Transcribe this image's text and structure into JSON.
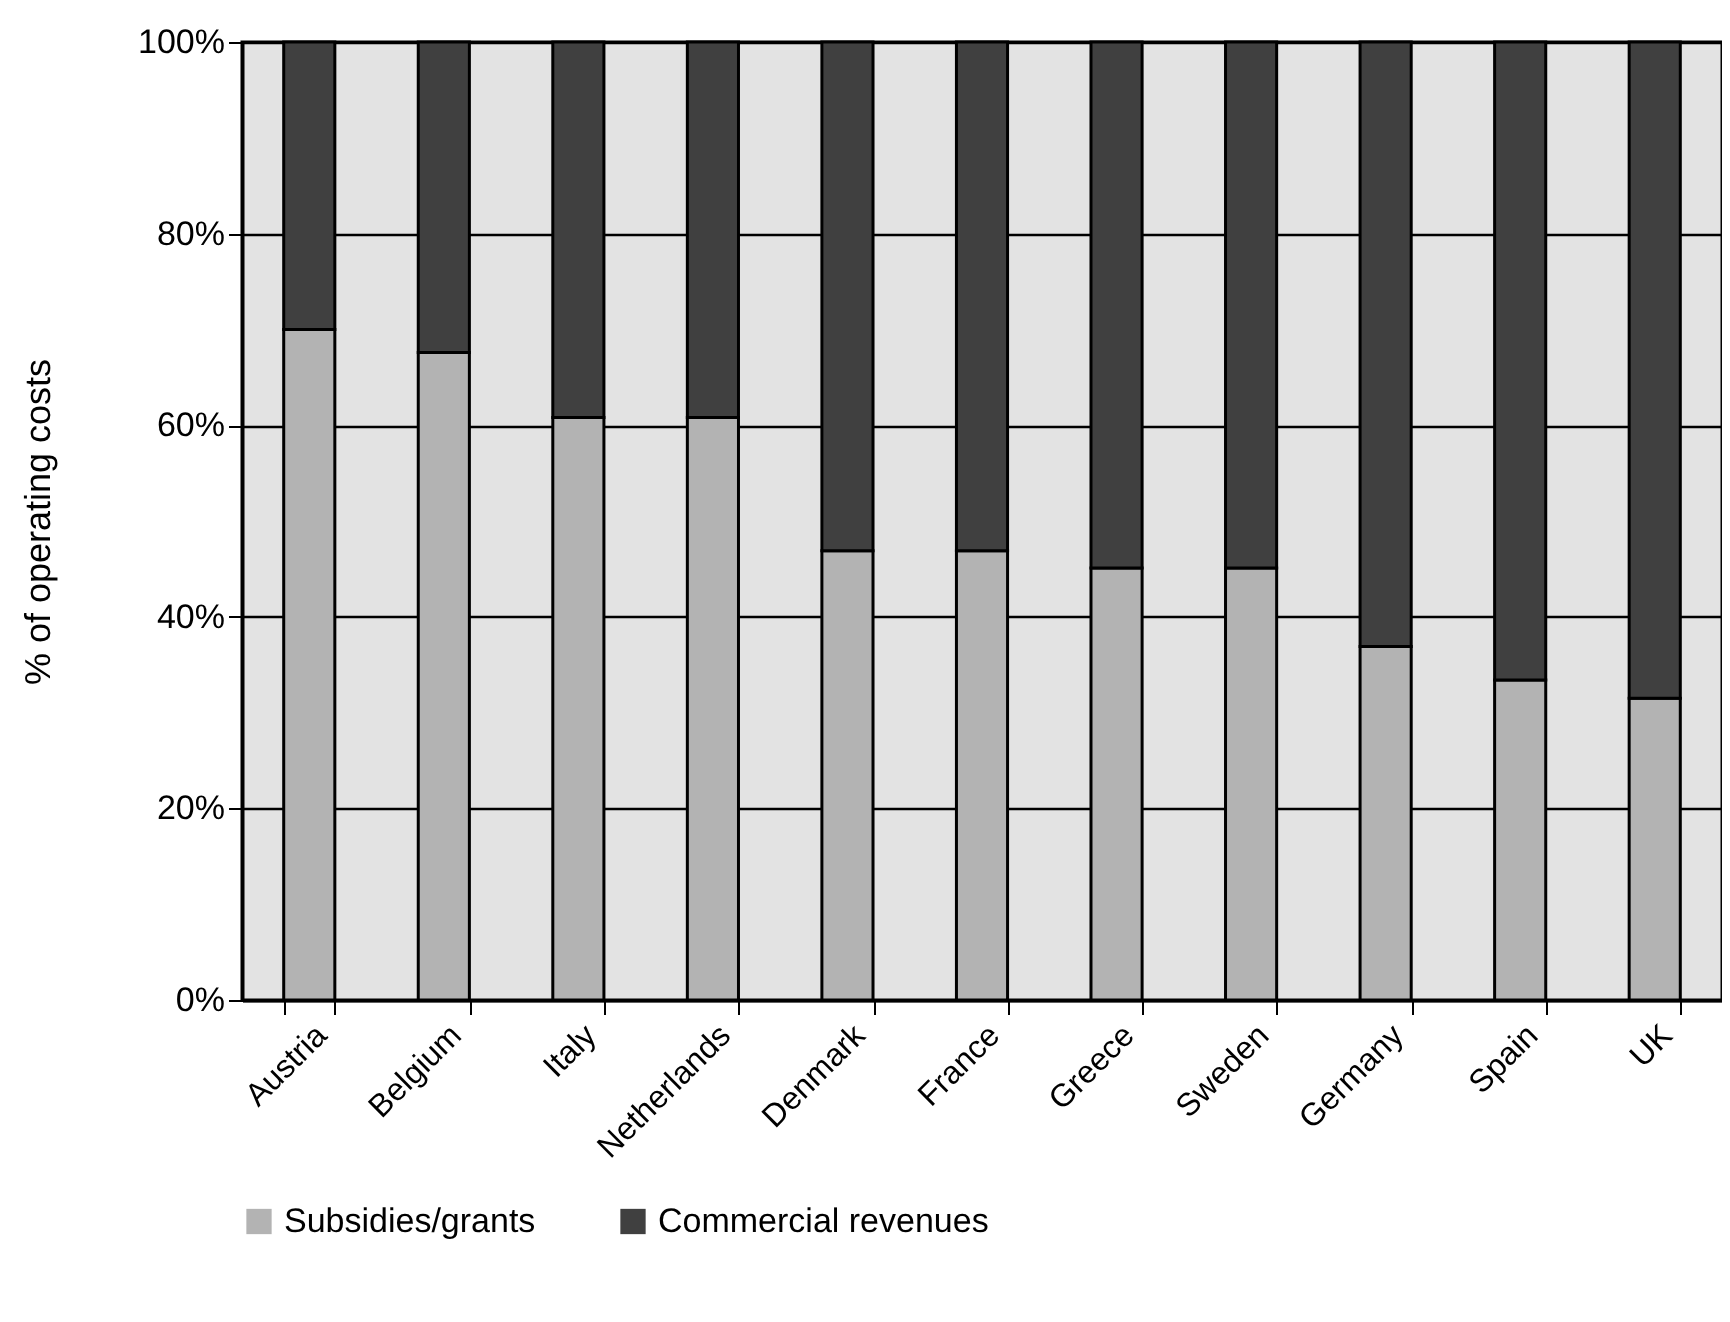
{
  "chart_data": {
    "type": "bar",
    "stacked": true,
    "ylabel": "% of operating costs",
    "categories": [
      "Austria",
      "Belgium",
      "Italy",
      "Netherlands",
      "Denmark",
      "France",
      "Greece",
      "Sweden",
      "Germany",
      "Spain",
      "UK"
    ],
    "series": [
      {
        "name": "Subsidies/grants",
        "color": "#b3b3b3",
        "values": [
          70.0,
          67.6,
          60.8,
          60.8,
          46.9,
          46.9,
          45.1,
          45.1,
          36.9,
          33.4,
          31.5
        ]
      },
      {
        "name": "Commercial revenues",
        "color": "#404040",
        "values": [
          30.0,
          32.4,
          39.2,
          39.2,
          53.1,
          53.1,
          54.9,
          54.9,
          63.1,
          66.6,
          68.5
        ]
      }
    ],
    "ylim": [
      0,
      100
    ],
    "yticks": [
      {
        "value": 0,
        "label": "0%"
      },
      {
        "value": 20,
        "label": "20%"
      },
      {
        "value": 40,
        "label": "40%"
      },
      {
        "value": 60,
        "label": "60%"
      },
      {
        "value": 80,
        "label": "80%"
      },
      {
        "value": 100,
        "label": "100%"
      }
    ],
    "grid": "y",
    "legend": "bottom"
  }
}
